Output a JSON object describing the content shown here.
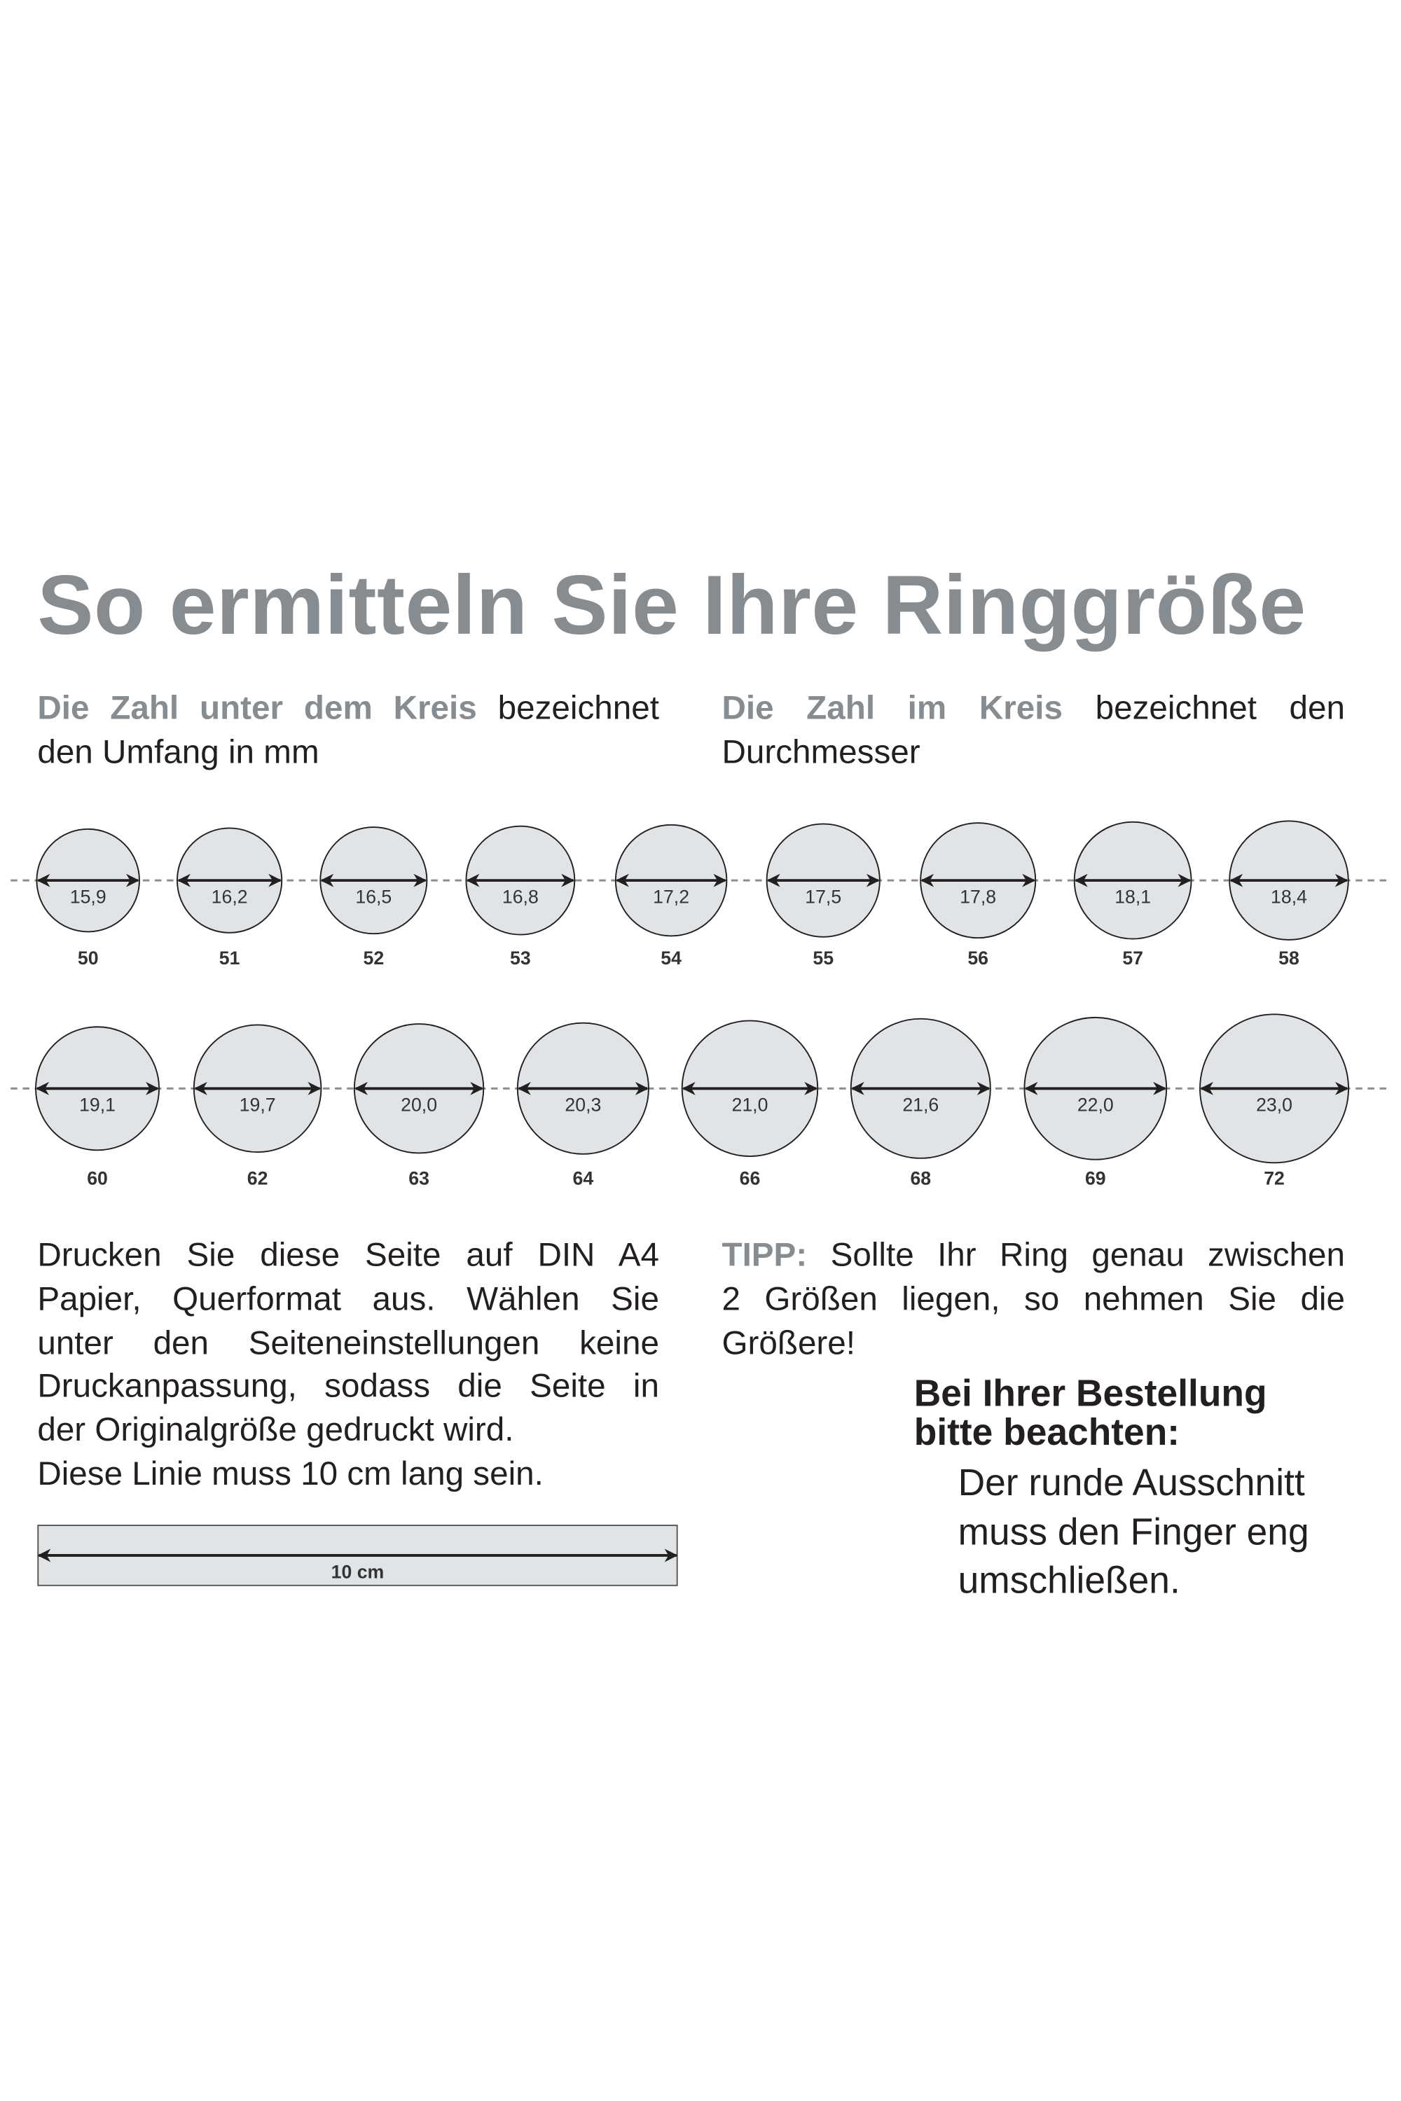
{
  "title": "So ermitteln Sie Ihre Ringgröße",
  "subtitle_left": {
    "highlight": "Die Zahl unter dem Kreis",
    "rest": " bezeichnet",
    "line2": "den Umfang in mm"
  },
  "subtitle_right": {
    "highlight": "Die Zahl im Kreis",
    "rest": " bezeichnet den",
    "line2": "Durchmesser"
  },
  "rings": {
    "row1": [
      {
        "diameter": "15,9",
        "size": "50"
      },
      {
        "diameter": "16,2",
        "size": "51"
      },
      {
        "diameter": "16,5",
        "size": "52"
      },
      {
        "diameter": "16,8",
        "size": "53"
      },
      {
        "diameter": "17,2",
        "size": "54"
      },
      {
        "diameter": "17,5",
        "size": "55"
      },
      {
        "diameter": "17,8",
        "size": "56"
      },
      {
        "diameter": "18,1",
        "size": "57"
      },
      {
        "diameter": "18,4",
        "size": "58"
      }
    ],
    "row2": [
      {
        "diameter": "19,1",
        "size": "60"
      },
      {
        "diameter": "19,7",
        "size": "62"
      },
      {
        "diameter": "20,0",
        "size": "63"
      },
      {
        "diameter": "20,3",
        "size": "64"
      },
      {
        "diameter": "21,0",
        "size": "66"
      },
      {
        "diameter": "21,6",
        "size": "68"
      },
      {
        "diameter": "22,0",
        "size": "69"
      },
      {
        "diameter": "23,0",
        "size": "72"
      }
    ]
  },
  "instructions": [
    "Drucken Sie diese Seite auf DIN A4",
    "Papier, Querformat aus. Wählen Sie",
    "unter den Seiteneinstellungen keine",
    "Druckanpassung, sodass die Seite in",
    "der Originalgröße gedruckt wird.",
    "Diese Linie muss 10 cm lang sein."
  ],
  "ruler_label": "10 cm",
  "tip": {
    "label": "TIPP:",
    "lines": [
      " Sollte Ihr Ring genau zwischen",
      "2 Größen liegen, so nehmen Sie die",
      "Größere!"
    ]
  },
  "order_note": {
    "heading": [
      "Bei Ihrer Bestellung",
      "bitte beachten:"
    ],
    "body": [
      "Der runde Ausschnitt",
      "muss den Finger eng",
      "umschließen."
    ]
  },
  "colors": {
    "accent_gray": "#878c91",
    "circle_fill": "#e1e4e7",
    "text": "#231f20"
  }
}
